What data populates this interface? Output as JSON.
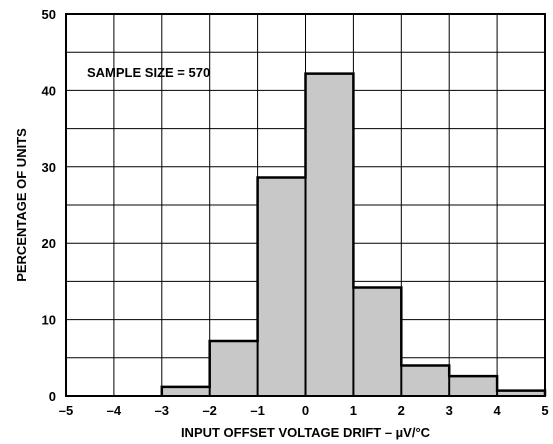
{
  "chart_data": {
    "type": "bar",
    "subtype": "histogram",
    "xlabel": "INPUT OFFSET VOLTAGE DRIFT – µV/°C",
    "ylabel": "PERCENTAGE OF UNITS",
    "annotation": "SAMPLE SIZE = 570",
    "xlim": [
      -5,
      5
    ],
    "ylim": [
      0,
      50
    ],
    "x_ticks": [
      "–5",
      "–4",
      "–3",
      "–2",
      "–1",
      "0",
      "1",
      "2",
      "3",
      "4",
      "5"
    ],
    "y_ticks": [
      "0",
      "10",
      "20",
      "30",
      "40",
      "50"
    ],
    "grid": true,
    "bins": [
      {
        "from": -3,
        "to": -2,
        "value": 1.2
      },
      {
        "from": -2,
        "to": -1,
        "value": 7.2
      },
      {
        "from": -1,
        "to": 0,
        "value": 28.6
      },
      {
        "from": 0,
        "to": 1,
        "value": 42.2
      },
      {
        "from": 1,
        "to": 2,
        "value": 14.2
      },
      {
        "from": 2,
        "to": 3,
        "value": 4.0
      },
      {
        "from": 3,
        "to": 4,
        "value": 2.6
      },
      {
        "from": 4,
        "to": 5,
        "value": 0.7
      }
    ],
    "colors": {
      "bar_fill": "#c8c8c8",
      "bar_edge": "#000000",
      "grid": "#000000"
    }
  }
}
